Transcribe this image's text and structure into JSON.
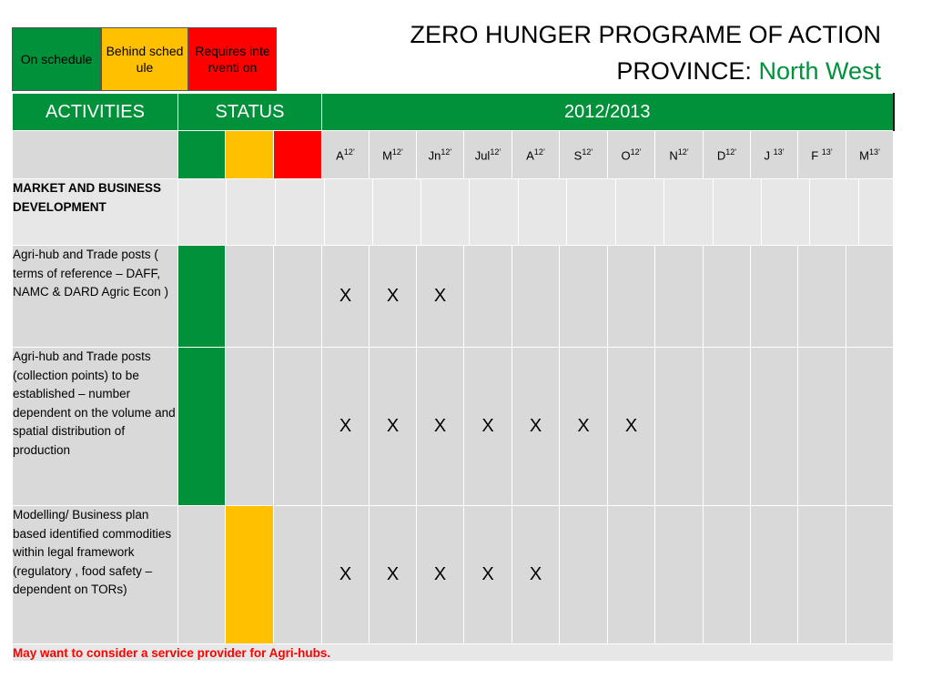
{
  "legend": {
    "on_schedule": "On schedule",
    "behind_schedule": "Behind schedule",
    "requires_intervention": "Requires interventi on",
    "colors": {
      "green": "#00913a",
      "amber": "#ffc000",
      "red": "#ff0000"
    }
  },
  "title": {
    "line1": "ZERO HUNGER PROGRAME OF ACTION",
    "line2_prefix": "PROVINCE:",
    "province": "North West"
  },
  "table": {
    "headers": {
      "activities": "ACTIVITIES",
      "status": "STATUS",
      "period": "2012/2013"
    },
    "months": [
      {
        "m": "A",
        "y": "12’"
      },
      {
        "m": "M",
        "y": "12’"
      },
      {
        "m": "Jn",
        "y": "12’"
      },
      {
        "m": "Jul",
        "y": "12’"
      },
      {
        "m": "A",
        "y": "12’"
      },
      {
        "m": "S",
        "y": "12’"
      },
      {
        "m": "O",
        "y": "12’"
      },
      {
        "m": "N",
        "y": "12’"
      },
      {
        "m": "D",
        "y": "12’"
      },
      {
        "m": "J ",
        "y": "13’"
      },
      {
        "m": "F ",
        "y": "13’"
      },
      {
        "m": "M",
        "y": "13’"
      }
    ],
    "section": "MARKET AND BUSINESS DEVELOPMENT",
    "rows": [
      {
        "activity": "Agri-hub and Trade posts ( terms of reference – DAFF, NAMC & DARD Agric Econ )",
        "status": "green",
        "marks": [
          "X",
          "X",
          "X",
          "",
          "",
          "",
          "",
          "",
          "",
          "",
          "",
          ""
        ]
      },
      {
        "activity": "Agri-hub and Trade posts (collection points) to be established – number dependent on the volume and spatial distribution of production",
        "status": "green",
        "marks": [
          "X",
          "X",
          "X",
          "X",
          "X",
          "X",
          "X",
          "",
          "",
          "",
          "",
          ""
        ]
      },
      {
        "activity": "Modelling/ Business plan based identified commodities within legal framework (regulatory , food safety – dependent on TORs)",
        "status": "amber",
        "marks": [
          "X",
          "X",
          "X",
          "X",
          "X",
          "",
          "",
          "",
          "",
          "",
          "",
          ""
        ]
      }
    ],
    "note": "May want to consider a service provider for Agri-hubs."
  }
}
